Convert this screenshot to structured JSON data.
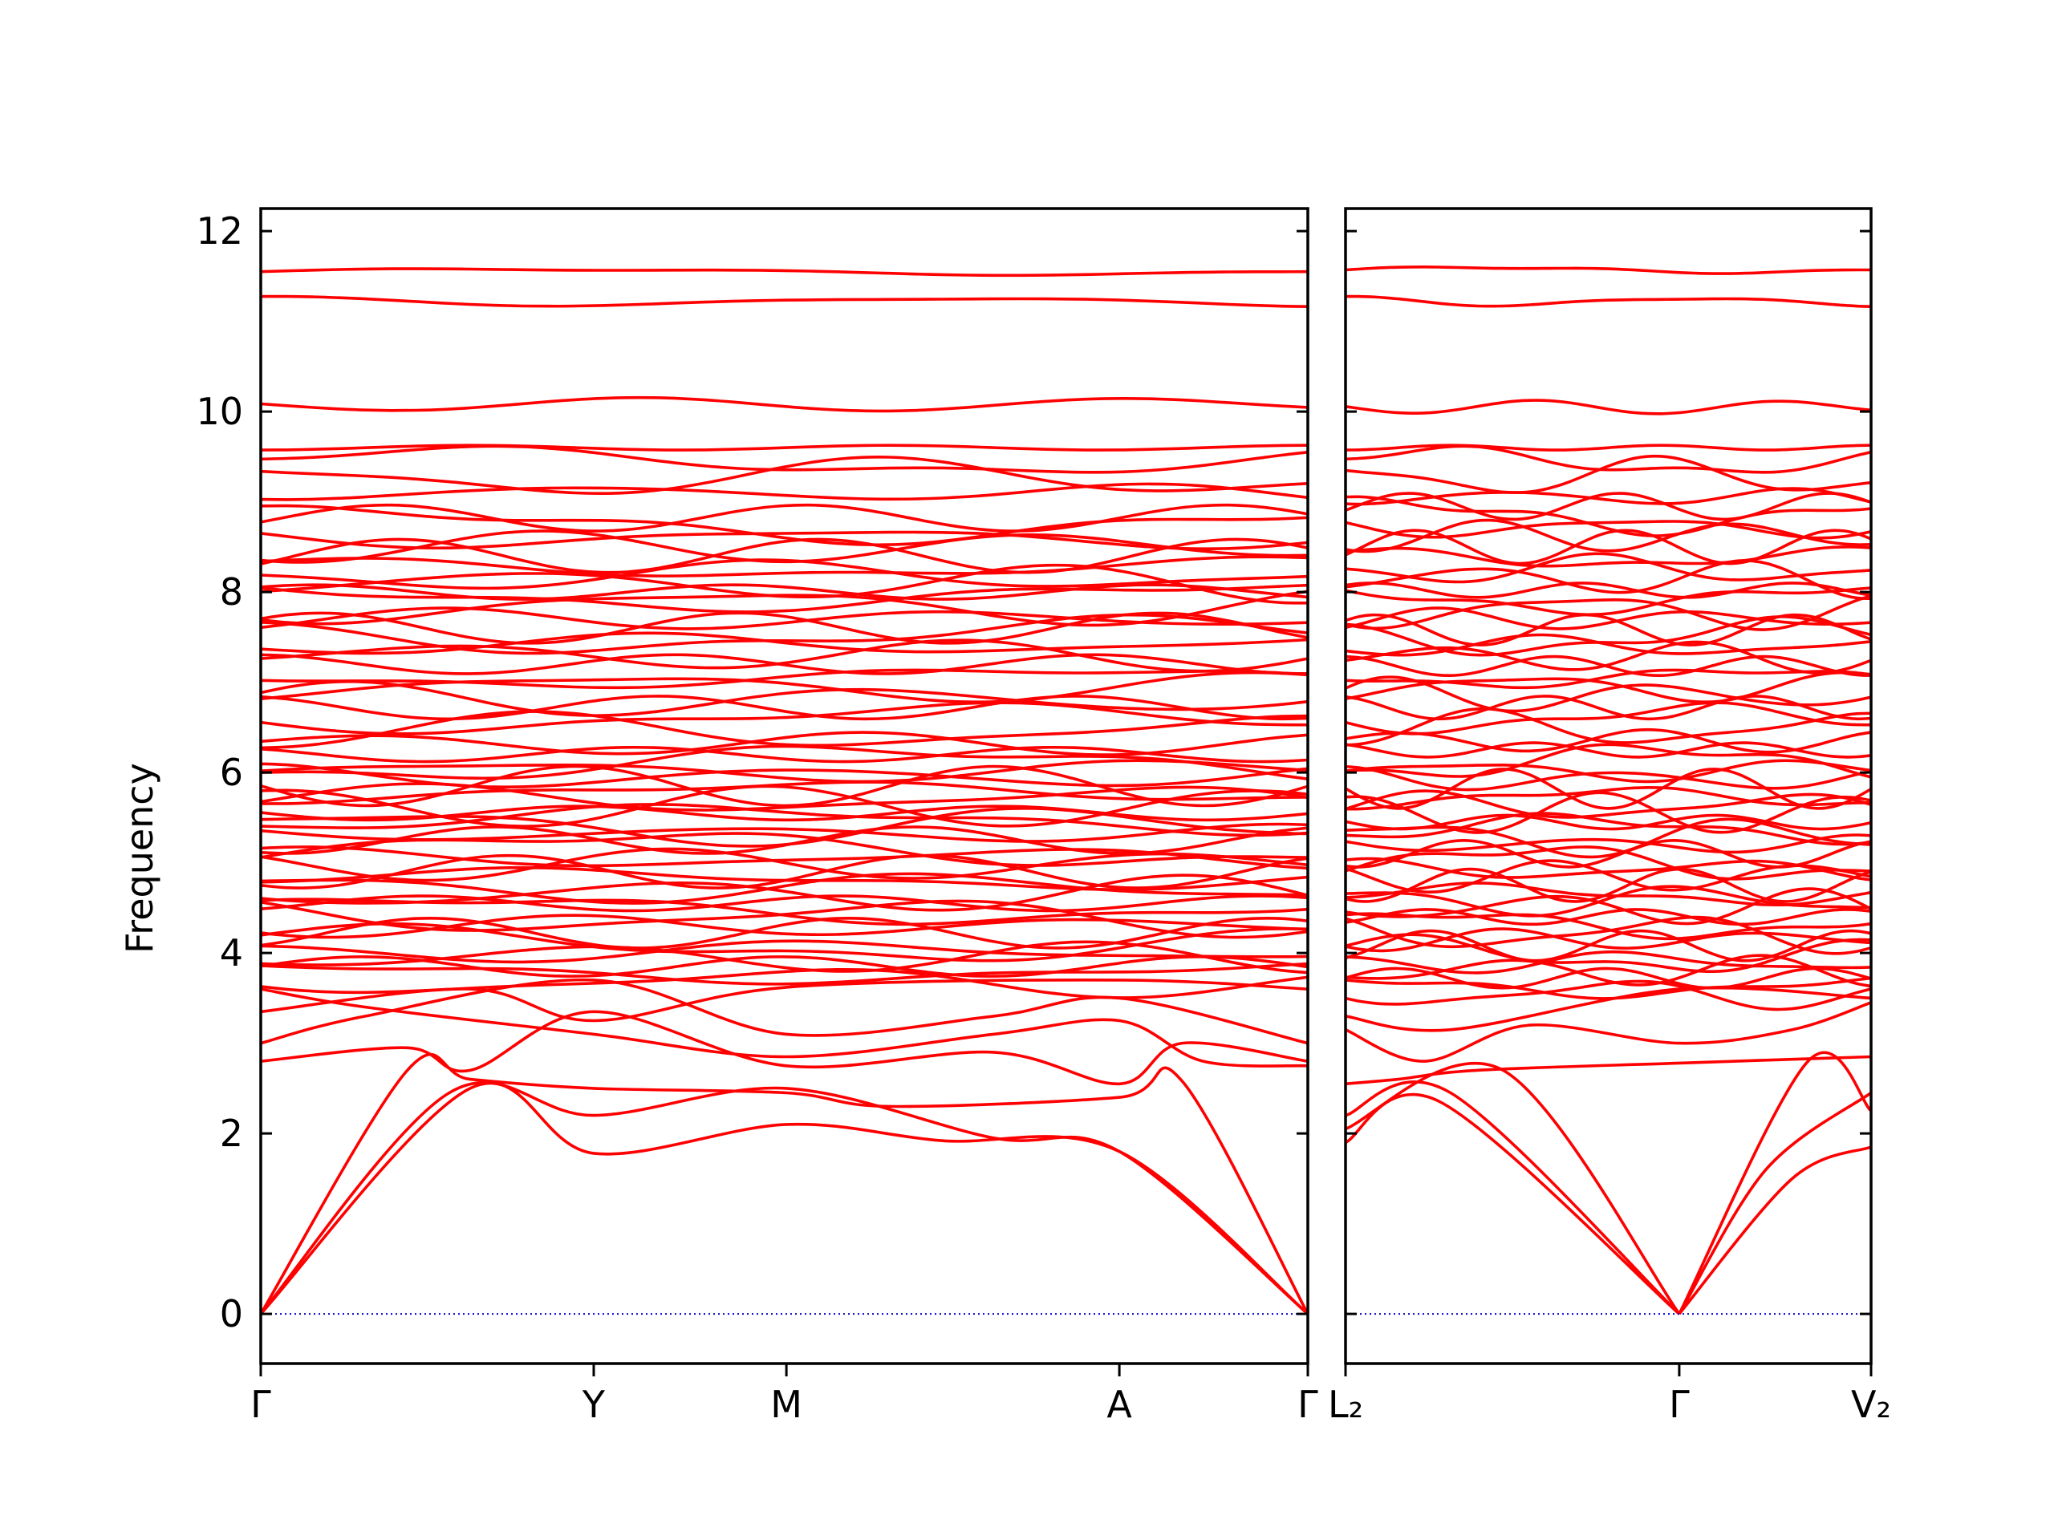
{
  "colors": {
    "band": "#ff0000",
    "zero_line": "#0000cc",
    "axis": "#000000",
    "background": "#ffffff"
  },
  "chart_data": {
    "type": "line",
    "title": "",
    "xlabel": "",
    "ylabel": "Frequency",
    "ylim": [
      -0.55,
      12.25
    ],
    "yticks": [
      0,
      2,
      4,
      6,
      8,
      10,
      12
    ],
    "grid": false,
    "legend": "none",
    "panels": [
      {
        "kpoints": [
          {
            "label": "Γ",
            "x": 0.0
          },
          {
            "label": "Y",
            "x": 0.318
          },
          {
            "label": "M",
            "x": 0.502
          },
          {
            "label": "A",
            "x": 0.82
          },
          {
            "label": "Γ",
            "x": 1.0
          }
        ],
        "flat_bands": [
          11.55,
          11.22,
          10.08,
          9.6,
          9.45,
          9.27,
          9.1,
          8.82,
          8.75,
          8.6,
          8.5,
          8.4,
          8.27,
          8.18,
          8.1,
          8.0,
          7.95,
          7.85,
          7.7,
          7.6,
          7.52,
          7.42,
          7.3,
          7.2,
          7.05,
          6.95,
          6.8,
          6.72,
          6.6,
          6.45,
          6.32,
          6.2,
          6.1,
          6.02,
          5.95,
          5.85,
          5.78,
          5.7,
          5.62,
          5.55,
          5.48,
          5.4,
          5.32,
          5.25,
          5.15,
          5.05,
          4.98,
          4.9,
          4.82,
          4.72,
          4.65,
          4.55,
          4.48,
          4.4,
          4.3,
          4.22,
          4.1,
          4.02,
          3.95,
          3.85,
          3.78,
          3.68
        ],
        "bands": [
          {
            "name": "",
            "points": [
              [
                0,
                0
              ],
              [
                0.14,
                2.7
              ],
              [
                0.2,
                2.6
              ],
              [
                0.318,
                2.5
              ],
              [
                0.502,
                2.45
              ],
              [
                0.6,
                2.3
              ],
              [
                0.82,
                2.4
              ],
              [
                0.88,
                2.58
              ],
              [
                1.0,
                0
              ]
            ]
          },
          {
            "name": "",
            "points": [
              [
                0,
                0
              ],
              [
                0.18,
                2.45
              ],
              [
                0.318,
                2.2
              ],
              [
                0.502,
                2.5
              ],
              [
                0.7,
                1.95
              ],
              [
                0.82,
                1.8
              ],
              [
                1.0,
                0
              ]
            ]
          },
          {
            "name": "",
            "points": [
              [
                0,
                0
              ],
              [
                0.2,
                2.5
              ],
              [
                0.318,
                1.78
              ],
              [
                0.502,
                2.1
              ],
              [
                0.65,
                1.92
              ],
              [
                0.82,
                1.8
              ],
              [
                1.0,
                0
              ]
            ]
          },
          {
            "name": "",
            "points": [
              [
                0,
                2.8
              ],
              [
                0.14,
                2.95
              ],
              [
                0.2,
                2.7
              ],
              [
                0.318,
                3.35
              ],
              [
                0.502,
                2.75
              ],
              [
                0.7,
                2.9
              ],
              [
                0.82,
                2.55
              ],
              [
                0.88,
                3.0
              ],
              [
                1.0,
                2.8
              ]
            ]
          },
          {
            "name": "",
            "points": [
              [
                0,
                3.0
              ],
              [
                0.1,
                3.3
              ],
              [
                0.318,
                3.7
              ],
              [
                0.502,
                3.1
              ],
              [
                0.7,
                3.3
              ],
              [
                0.82,
                3.5
              ],
              [
                1.0,
                3.0
              ]
            ]
          },
          {
            "name": "",
            "points": [
              [
                0,
                3.35
              ],
              [
                0.2,
                3.6
              ],
              [
                0.318,
                3.25
              ],
              [
                0.502,
                3.62
              ],
              [
                0.82,
                3.7
              ],
              [
                1.0,
                3.6
              ]
            ]
          },
          {
            "name": "",
            "points": [
              [
                0,
                3.6
              ],
              [
                0.1,
                3.4
              ],
              [
                0.318,
                3.1
              ],
              [
                0.502,
                2.85
              ],
              [
                0.7,
                3.1
              ],
              [
                0.82,
                3.25
              ],
              [
                0.9,
                2.8
              ],
              [
                1.0,
                2.75
              ]
            ]
          }
        ]
      },
      {
        "kpoints": [
          {
            "label": "L₂",
            "x": 0.0
          },
          {
            "label": "Γ",
            "x": 0.635
          },
          {
            "label": "V₂",
            "x": 1.0
          }
        ],
        "flat_bands": [
          11.57,
          11.22,
          10.05,
          9.6,
          9.45,
          9.28,
          9.05,
          8.95,
          8.85,
          8.72,
          8.62,
          8.5,
          8.38,
          8.25,
          8.15,
          8.02,
          7.92,
          7.8,
          7.7,
          7.58,
          7.5,
          7.4,
          7.28,
          7.18,
          7.05,
          6.95,
          6.85,
          6.72,
          6.6,
          6.48,
          6.35,
          6.25,
          6.12,
          6.02,
          5.92,
          5.82,
          5.72,
          5.62,
          5.55,
          5.45,
          5.38,
          5.28,
          5.2,
          5.1,
          5.0,
          4.92,
          4.85,
          4.75,
          4.65,
          4.58,
          4.5,
          4.4,
          4.32,
          4.22,
          4.15,
          4.08,
          3.98,
          3.9,
          3.8,
          3.72,
          3.62,
          3.55
        ],
        "bands": [
          {
            "name": "",
            "points": [
              [
                0,
                2.2
              ],
              [
                0.2,
                2.45
              ],
              [
                0.635,
                0
              ],
              [
                0.8,
                1.6
              ],
              [
                1.0,
                2.45
              ]
            ]
          },
          {
            "name": "",
            "points": [
              [
                0,
                1.9
              ],
              [
                0.18,
                2.35
              ],
              [
                0.635,
                0
              ],
              [
                0.85,
                1.5
              ],
              [
                1.0,
                1.85
              ]
            ]
          },
          {
            "name": "",
            "points": [
              [
                0,
                2.05
              ],
              [
                0.3,
                2.7
              ],
              [
                0.635,
                0
              ],
              [
                0.88,
                2.8
              ],
              [
                1.0,
                2.25
              ]
            ]
          },
          {
            "name": "",
            "points": [
              [
                0,
                2.55
              ],
              [
                0.1,
                2.6
              ],
              [
                0.25,
                2.7
              ],
              [
                0.635,
                2.78
              ],
              [
                1.0,
                2.85
              ]
            ]
          },
          {
            "name": "",
            "points": [
              [
                0,
                3.15
              ],
              [
                0.15,
                2.8
              ],
              [
                0.35,
                3.2
              ],
              [
                0.635,
                3.0
              ],
              [
                0.85,
                3.15
              ],
              [
                1.0,
                3.45
              ]
            ]
          },
          {
            "name": "",
            "points": [
              [
                0,
                3.3
              ],
              [
                0.2,
                3.15
              ],
              [
                0.635,
                3.6
              ],
              [
                1.0,
                3.5
              ]
            ]
          }
        ]
      }
    ]
  }
}
